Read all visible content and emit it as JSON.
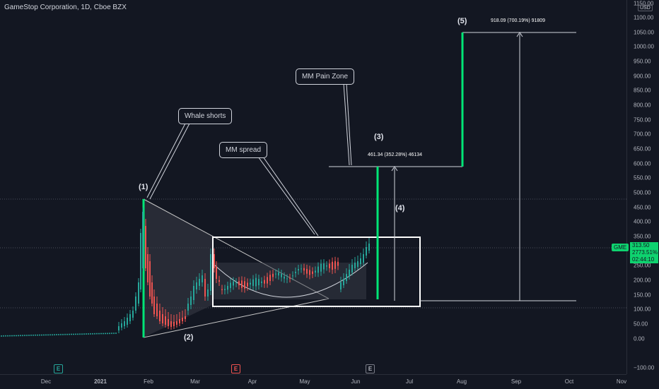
{
  "header": {
    "symbol_title": "GameStop Corporation, 1D, Cboe BZX"
  },
  "price_scale": {
    "currency": "USD",
    "ticks": [
      "1150.00",
      "1100.00",
      "1050.00",
      "1000.00",
      "950.00",
      "900.00",
      "850.00",
      "800.00",
      "750.00",
      "700.00",
      "650.00",
      "600.00",
      "550.00",
      "500.00",
      "450.00",
      "400.00",
      "350.00",
      "300.00",
      "250.00",
      "200.00",
      "150.00",
      "100.00",
      "50.00",
      "0.00",
      "−100.00"
    ]
  },
  "time_scale": {
    "ticks": [
      "Dec",
      "2021",
      "Feb",
      "Mar",
      "Apr",
      "May",
      "Jun",
      "Jul",
      "Aug",
      "Sep",
      "Oct",
      "Nov"
    ]
  },
  "last_price": {
    "symbol": "GME",
    "price": "313.50",
    "change": "2773.51%",
    "countdown": "02:44:10",
    "color": "#0ed36f"
  },
  "annotations": {
    "whale_shorts": "Whale shorts",
    "mm_spread": "MM spread",
    "mm_pain_zone": "MM Pain Zone",
    "label_1": "(1)",
    "label_2": "(2)",
    "label_3": "(3)",
    "label_4": "(4)",
    "label_5": "(5)",
    "measure_3": "461.34 (352.28%) 46134",
    "measure_5": "918.09 (700.19%) 91809"
  },
  "earnings_markers": [
    {
      "letter": "E",
      "color": "#26a69a"
    },
    {
      "letter": "E",
      "color": "#ef5350"
    },
    {
      "letter": "E",
      "color": "#787b86"
    }
  ],
  "chart_data": {
    "type": "candlestick",
    "title": "GameStop Corporation, 1D, Cboe BZX",
    "ylim": [
      -100,
      1150
    ],
    "x_categories": [
      "Dec",
      "2021",
      "Feb",
      "Mar",
      "Apr",
      "May",
      "Jun",
      "Jul",
      "Aug",
      "Sep",
      "Oct",
      "Nov"
    ],
    "series": [
      {
        "name": "GME",
        "close_points": [
          [
            "Nov",
            12
          ],
          [
            "Dec",
            15
          ],
          [
            "2021",
            18
          ],
          [
            "Jan",
            40
          ],
          [
            "Jan",
            147
          ],
          [
            "Jan",
            347
          ],
          [
            "Feb",
            90
          ],
          [
            "Feb",
            52
          ],
          [
            "Mar",
            120
          ],
          [
            "Mar",
            260
          ],
          [
            "Apr",
            160
          ],
          [
            "May",
            170
          ],
          [
            "Jun",
            250
          ],
          [
            "Jun",
            313.5
          ]
        ]
      }
    ],
    "levels": {
      "base": 130,
      "pain_zone": 600,
      "target": 1050
    }
  }
}
